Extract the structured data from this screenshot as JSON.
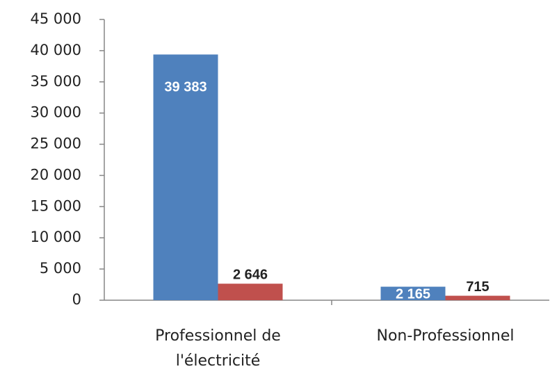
{
  "chart_data": {
    "type": "bar",
    "categories": [
      "Professionnel de l'électricité",
      "Non-Professionnel"
    ],
    "series": [
      {
        "color": "#4f81bd",
        "values": [
          39383,
          2165
        ],
        "value_labels": [
          "39 383",
          "2 165"
        ]
      },
      {
        "color": "#c0504d",
        "values": [
          2646,
          715
        ],
        "value_labels": [
          "2 646",
          "715"
        ]
      }
    ],
    "ylim": [
      0,
      45000
    ],
    "yticks": [
      0,
      {
        "value": 5000,
        "label": "5 000"
      },
      {
        "value": 10000,
        "label": "10 000"
      },
      {
        "value": 15000,
        "label": "15 000"
      },
      {
        "value": 20000,
        "label": "20 000"
      },
      {
        "value": 25000,
        "label": "25 000"
      },
      {
        "value": 30000,
        "label": "30 000"
      },
      {
        "value": 35000,
        "label": "35 000"
      },
      {
        "value": 40000,
        "label": "40 000"
      },
      {
        "value": 45000,
        "label": "45 000"
      }
    ],
    "grid": false
  }
}
